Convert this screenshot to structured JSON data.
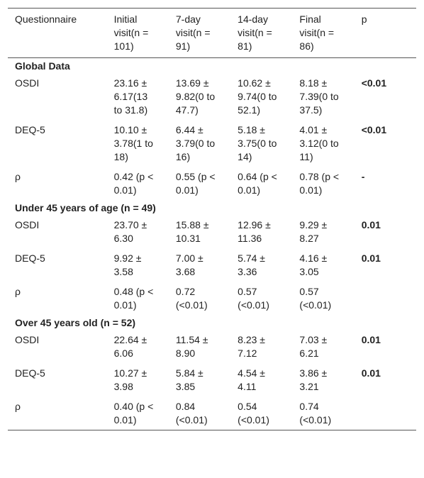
{
  "table": {
    "header": [
      "Questionnaire",
      "Initial visit(n = 101)",
      "7-day visit(n = 91)",
      "14-day visit(n = 81)",
      "Final visit(n = 86)",
      "p"
    ],
    "groups": [
      {
        "title": "Global Data",
        "rows": [
          [
            "OSDI",
            "23.16 ± 6.17(13 to 31.8)",
            "13.69 ± 9.82(0 to 47.7)",
            "10.62 ± 9.74(0 to 52.1)",
            "8.18 ± 7.39(0 to 37.5)",
            "<0.01"
          ],
          [
            "DEQ-5",
            "10.10 ± 3.78(1 to 18)",
            "6.44 ± 3.79(0 to 16)",
            "5.18 ± 3.75(0 to 14)",
            "4.01 ± 3.12(0 to 11)",
            "<0.01"
          ],
          [
            "ρ",
            "0.42 (p < 0.01)",
            "0.55 (p < 0.01)",
            "0.64 (p < 0.01)",
            "0.78 (p < 0.01)",
            "-"
          ]
        ]
      },
      {
        "title": "Under 45 years of age (n = 49)",
        "rows": [
          [
            "OSDI",
            "23.70 ± 6.30",
            "15.88 ± 10.31",
            "12.96 ± 11.36",
            "9.29 ± 8.27",
            "0.01"
          ],
          [
            "DEQ-5",
            "9.92 ± 3.58",
            "7.00 ± 3.68",
            "5.74 ± 3.36",
            "4.16 ± 3.05",
            "0.01"
          ],
          [
            "ρ",
            "0.48 (p < 0.01)",
            "0.72 (<0.01)",
            "0.57 (<0.01)",
            "0.57 (<0.01)",
            ""
          ]
        ]
      },
      {
        "title": "Over 45 years old (n = 52)",
        "rows": [
          [
            "OSDI",
            "22.64 ± 6.06",
            "11.54 ± 8.90",
            "8.23 ± 7.12",
            "7.03 ± 6.21",
            "0.01"
          ],
          [
            "DEQ-5",
            "10.27 ± 3.98",
            "5.84 ± 3.85",
            "4.54 ± 4.11",
            "3.86 ± 3.21",
            "0.01"
          ],
          [
            "ρ",
            "0.40 (p < 0.01)",
            "0.84 (<0.01)",
            "0.54 (<0.01)",
            "0.74 (<0.01)",
            ""
          ]
        ]
      }
    ]
  }
}
